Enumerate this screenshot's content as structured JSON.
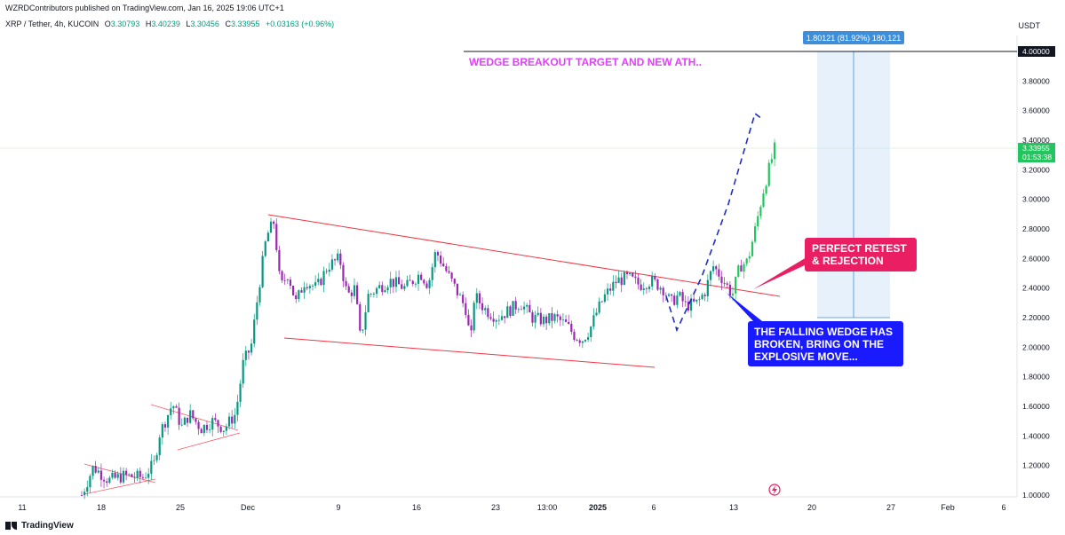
{
  "header": {
    "published": "WZRDContributors published on TradingView.com, Jan 16, 2025 19:06 UTC+1",
    "symbol": "XRP / Tether, 4h, KUCOIN",
    "o_label": "O",
    "o_value": "3.30793",
    "h_label": "H",
    "h_value": "3.40239",
    "l_label": "L",
    "l_value": "3.30456",
    "c_label": "C",
    "c_value": "3.33955",
    "change": "+0.03163 (+0.96%)",
    "currency": "USDT"
  },
  "footer": {
    "brand": "TradingView"
  },
  "colors": {
    "up": "#089981",
    "up_bright": "#22c55e",
    "down": "#9c27b0",
    "wedge": "#f23645",
    "annotation_magenta": "#e040fb",
    "pink_box": "#e91e63",
    "blue_box": "#1a1aff",
    "projection": "#1e2ebf",
    "measure_fill": "#e3f0fc",
    "measure_label": "#3d8fdb"
  },
  "chart_data": {
    "type": "candlestick",
    "symbol": "XRP / Tether",
    "timeframe": "4h",
    "ylim": [
      0.98,
      4.15
    ],
    "y_ticks": [
      "1.00000",
      "1.20000",
      "1.40000",
      "1.60000",
      "1.80000",
      "2.00000",
      "2.20000",
      "2.40000",
      "2.60000",
      "2.80000",
      "3.00000",
      "3.20000",
      "3.40000",
      "3.60000",
      "3.80000",
      "4.00000"
    ],
    "x_ticks": [
      "11",
      "18",
      "25",
      "Dec",
      "9",
      "16",
      "23",
      "13:00",
      "2025",
      "6",
      "13",
      "20",
      "27",
      "Feb",
      "6"
    ],
    "last_price": "3.33955",
    "countdown": "01:53:38",
    "level_price": "4.00000",
    "price_path": [
      {
        "x": 0.0,
        "y": 1.0
      },
      {
        "x": 0.15,
        "y": 1.19
      },
      {
        "x": 0.35,
        "y": 1.1
      },
      {
        "x": 0.55,
        "y": 1.13
      },
      {
        "x": 0.8,
        "y": 1.12
      },
      {
        "x": 0.95,
        "y": 1.22
      },
      {
        "x": 1.0,
        "y": 1.4
      },
      {
        "x": 1.1,
        "y": 1.52
      },
      {
        "x": 1.18,
        "y": 1.62
      },
      {
        "x": 1.3,
        "y": 1.46
      },
      {
        "x": 1.4,
        "y": 1.55
      },
      {
        "x": 1.55,
        "y": 1.45
      },
      {
        "x": 1.7,
        "y": 1.5
      },
      {
        "x": 1.85,
        "y": 1.45
      },
      {
        "x": 2.0,
        "y": 1.55
      },
      {
        "x": 2.1,
        "y": 1.9
      },
      {
        "x": 2.2,
        "y": 2.0
      },
      {
        "x": 2.3,
        "y": 2.4
      },
      {
        "x": 2.4,
        "y": 2.75
      },
      {
        "x": 2.5,
        "y": 2.85
      },
      {
        "x": 2.58,
        "y": 2.4
      },
      {
        "x": 2.68,
        "y": 2.5
      },
      {
        "x": 2.78,
        "y": 2.3
      },
      {
        "x": 2.9,
        "y": 2.45
      },
      {
        "x": 3.05,
        "y": 2.4
      },
      {
        "x": 3.2,
        "y": 2.55
      },
      {
        "x": 3.35,
        "y": 2.6
      },
      {
        "x": 3.45,
        "y": 2.35
      },
      {
        "x": 3.55,
        "y": 2.4
      },
      {
        "x": 3.62,
        "y": 2.05
      },
      {
        "x": 3.72,
        "y": 2.35
      },
      {
        "x": 3.85,
        "y": 2.4
      },
      {
        "x": 4.0,
        "y": 2.45
      },
      {
        "x": 4.2,
        "y": 2.4
      },
      {
        "x": 4.4,
        "y": 2.5
      },
      {
        "x": 4.5,
        "y": 2.42
      },
      {
        "x": 4.6,
        "y": 2.65
      },
      {
        "x": 4.7,
        "y": 2.55
      },
      {
        "x": 4.8,
        "y": 2.45
      },
      {
        "x": 4.9,
        "y": 2.35
      },
      {
        "x": 5.0,
        "y": 2.25
      },
      {
        "x": 5.05,
        "y": 2.0
      },
      {
        "x": 5.1,
        "y": 2.35
      },
      {
        "x": 5.25,
        "y": 2.25
      },
      {
        "x": 5.4,
        "y": 2.2
      },
      {
        "x": 5.55,
        "y": 2.25
      },
      {
        "x": 5.7,
        "y": 2.3
      },
      {
        "x": 5.85,
        "y": 2.2
      },
      {
        "x": 6.0,
        "y": 2.18
      },
      {
        "x": 6.15,
        "y": 2.2
      },
      {
        "x": 6.3,
        "y": 2.15
      },
      {
        "x": 6.4,
        "y": 2.08
      },
      {
        "x": 6.5,
        "y": 2.05
      },
      {
        "x": 6.6,
        "y": 2.12
      },
      {
        "x": 6.7,
        "y": 2.25
      },
      {
        "x": 6.8,
        "y": 2.35
      },
      {
        "x": 6.95,
        "y": 2.45
      },
      {
        "x": 7.1,
        "y": 2.47
      },
      {
        "x": 7.25,
        "y": 2.42
      },
      {
        "x": 7.4,
        "y": 2.45
      },
      {
        "x": 7.55,
        "y": 2.4
      },
      {
        "x": 7.65,
        "y": 2.3
      },
      {
        "x": 7.75,
        "y": 2.35
      },
      {
        "x": 7.85,
        "y": 2.28
      },
      {
        "x": 8.0,
        "y": 2.3
      },
      {
        "x": 8.1,
        "y": 2.38
      },
      {
        "x": 8.2,
        "y": 2.55
      },
      {
        "x": 8.3,
        "y": 2.48
      },
      {
        "x": 8.4,
        "y": 2.4
      },
      {
        "x": 8.45,
        "y": 2.35
      },
      {
        "x": 8.55,
        "y": 2.55
      },
      {
        "x": 8.65,
        "y": 2.58
      },
      {
        "x": 8.75,
        "y": 2.8
      },
      {
        "x": 8.85,
        "y": 3.05
      },
      {
        "x": 8.95,
        "y": 3.25
      },
      {
        "x": 9.0,
        "y": 3.34
      }
    ]
  },
  "annotations": {
    "title_text": "WEDGE BREAKOUT TARGET AND NEW ATH..",
    "pink_box": {
      "line1": "PERFECT RETEST",
      "line2": "& REJECTION"
    },
    "blue_box": {
      "line1": "THE FALLING WEDGE HAS",
      "line2": "BROKEN, BRING ON THE",
      "line3": "EXPLOSIVE MOVE..."
    },
    "measure_label": "1.80121 (81.92%) 180,121"
  }
}
